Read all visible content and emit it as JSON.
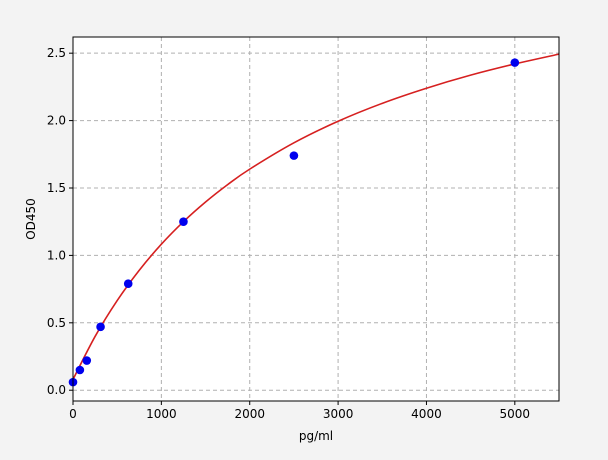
{
  "chart_data": {
    "type": "scatter",
    "title": "",
    "xlabel": "pg/ml",
    "ylabel": "OD450",
    "xlim": [
      0,
      5500
    ],
    "ylim": [
      -0.08,
      2.62
    ],
    "xticks": [
      0,
      1000,
      2000,
      3000,
      4000,
      5000
    ],
    "yticks": [
      0.0,
      0.5,
      1.0,
      1.5,
      2.0,
      2.5
    ],
    "xtick_labels": [
      "0",
      "1000",
      "2000",
      "3000",
      "4000",
      "5000"
    ],
    "ytick_labels": [
      "0.0",
      "0.5",
      "1.0",
      "1.5",
      "2.0",
      "2.5"
    ],
    "grid": true,
    "series": [
      {
        "kind": "points",
        "color": "#0000ee",
        "x": [
          0,
          78,
          156,
          312,
          625,
          1250,
          2500,
          5000
        ],
        "y": [
          0.06,
          0.15,
          0.22,
          0.47,
          0.79,
          1.25,
          1.74,
          2.43
        ]
      },
      {
        "kind": "fit-curve",
        "color": "#d62020",
        "x": [
          0,
          250,
          500,
          750,
          1000,
          1250,
          1500,
          1750,
          2000,
          2500,
          3000,
          3500,
          4000,
          4500,
          5000,
          5500
        ],
        "y": [
          0.08,
          0.399,
          0.665,
          0.89,
          1.083,
          1.25,
          1.396,
          1.525,
          1.64,
          1.835,
          1.995,
          2.128,
          2.24,
          2.337,
          2.42,
          2.493
        ]
      }
    ]
  }
}
